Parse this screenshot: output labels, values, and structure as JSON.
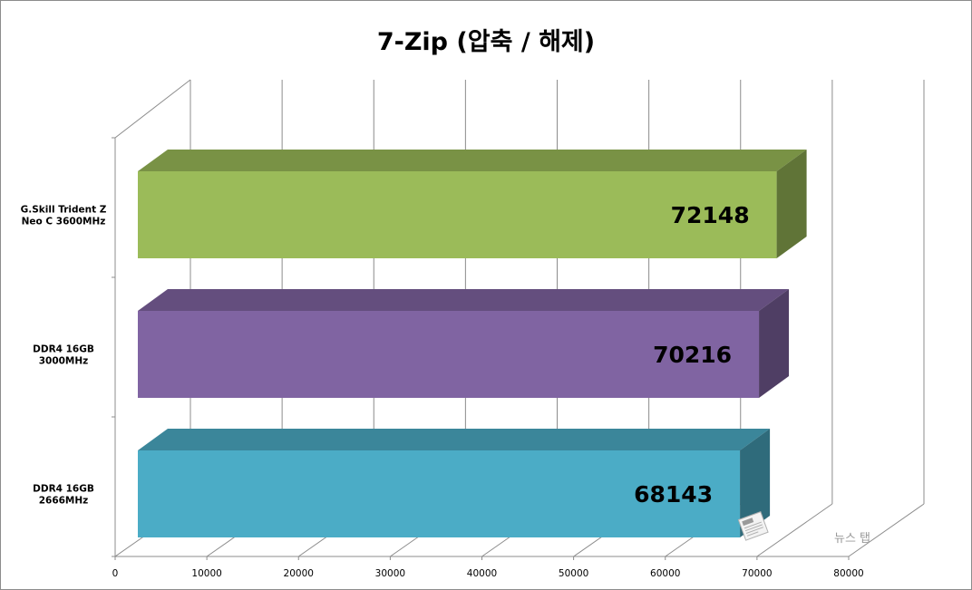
{
  "chart_data": {
    "type": "bar",
    "orientation": "horizontal",
    "style": "3d",
    "title": "7-Zip (압축 / 해제)",
    "categories": [
      [
        "G.Skill Trident Z",
        "Neo C 3600MHz"
      ],
      [
        "DDR4 16GB",
        "3000MHz"
      ],
      [
        "DDR4 16GB",
        "2666MHz"
      ]
    ],
    "values": [
      72148,
      70216,
      68143
    ],
    "colors": [
      "#9bbb59",
      "#8064a2",
      "#4bacc6"
    ],
    "xlim": [
      0,
      80000
    ],
    "xticks": [
      "0",
      "10000",
      "20000",
      "30000",
      "40000",
      "50000",
      "60000",
      "70000",
      "80000"
    ],
    "grid": true,
    "legend": "none"
  },
  "watermark": {
    "text": "뉴스 탭",
    "logo_icon": "newspaper-icon"
  }
}
